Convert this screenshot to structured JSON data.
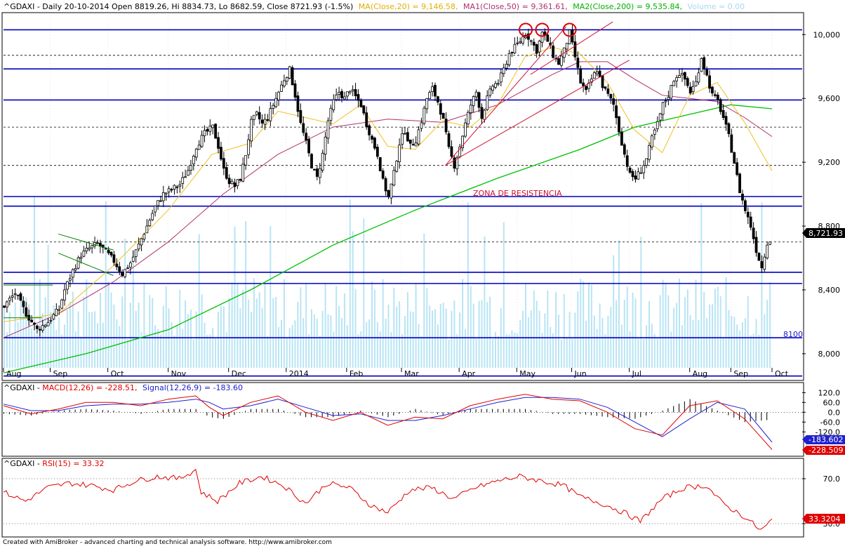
{
  "header": {
    "main_prefix": "^GDAXI - Daily 20-10-2014 Open 8819.26, Hi 8834.73, Lo 8682.59, Close 8721.93 (-1.5%)",
    "ma20": "MA(Close,20) = 9,146.58,",
    "ma50": "MA1(Close,50) = 9,361.61,",
    "ma200": "MA2(Close,200) = 9,535.84,",
    "volume": "Volume = 0.00",
    "macd_prefix": "^GDAXI - ",
    "macd_label": "MACD(12,26) = -228.51,",
    "signal_label": "Signal(12,26,9) = -183.60",
    "rsi_prefix": "^GDAXI - ",
    "rsi_label": "RSI(15) = 33.32"
  },
  "annotations": {
    "resistance_zone": "ZONA DE RESISTENCIA",
    "support_8100": "8100"
  },
  "footer": "Created with AmiBroker - advanced charting and technical analysis software. http://www.amibroker.com",
  "colors": {
    "price": "#000000",
    "ma20": "#f0c020",
    "ma50": "#b0306a",
    "ma200": "#00c000",
    "volume": "#b8e4f4",
    "macd": "#e00000",
    "signal": "#2020d0",
    "rsi": "#e00000",
    "levels": "#0000c0",
    "trend": "#d01030",
    "channel": "#008000",
    "tops": "#e00000"
  },
  "chart_data": [
    {
      "type": "candlestick",
      "symbol": "^GDAXI",
      "period": "Daily",
      "x_ticks": [
        "Aug",
        "Sep",
        "Oct",
        "Nov",
        "Dec",
        "2014",
        "Feb",
        "Mar",
        "Apr",
        "May",
        "Jun",
        "Jul",
        "Aug",
        "Sep",
        "Oct"
      ],
      "y_ticks": [
        "10,000",
        "9,600",
        "9,200",
        "8,800",
        "8,400",
        "8,000"
      ],
      "ylim": [
        7850,
        10120
      ],
      "last_close": "8,721.93",
      "ohlc_last": {
        "open": 8819.26,
        "high": 8834.73,
        "low": 8682.59,
        "close": 8721.93
      },
      "close_path": [
        [
          0,
          8300
        ],
        [
          4,
          8380
        ],
        [
          8,
          8250
        ],
        [
          12,
          8150
        ],
        [
          16,
          8200
        ],
        [
          20,
          8280
        ],
        [
          22,
          8400
        ],
        [
          25,
          8520
        ],
        [
          28,
          8620
        ],
        [
          31,
          8660
        ],
        [
          34,
          8690
        ],
        [
          37,
          8640
        ],
        [
          40,
          8580
        ],
        [
          43,
          8500
        ],
        [
          46,
          8570
        ],
        [
          49,
          8680
        ],
        [
          52,
          8800
        ],
        [
          55,
          8920
        ],
        [
          58,
          9000
        ],
        [
          61,
          9030
        ],
        [
          64,
          9060
        ],
        [
          67,
          9150
        ],
        [
          70,
          9300
        ],
        [
          73,
          9380
        ],
        [
          76,
          9420
        ],
        [
          78,
          9300
        ],
        [
          80,
          9150
        ],
        [
          82,
          9080
        ],
        [
          84,
          9050
        ],
        [
          86,
          9100
        ],
        [
          88,
          9250
        ],
        [
          90,
          9450
        ],
        [
          92,
          9500
        ],
        [
          94,
          9440
        ],
        [
          96,
          9480
        ],
        [
          98,
          9560
        ],
        [
          100,
          9640
        ],
        [
          102,
          9720
        ],
        [
          104,
          9780
        ],
        [
          106,
          9620
        ],
        [
          108,
          9440
        ],
        [
          110,
          9320
        ],
        [
          112,
          9180
        ],
        [
          114,
          9100
        ],
        [
          116,
          9250
        ],
        [
          118,
          9460
        ],
        [
          120,
          9580
        ],
        [
          122,
          9640
        ],
        [
          124,
          9600
        ],
        [
          126,
          9660
        ],
        [
          128,
          9610
        ],
        [
          130,
          9560
        ],
        [
          132,
          9440
        ],
        [
          134,
          9340
        ],
        [
          136,
          9250
        ],
        [
          138,
          9080
        ],
        [
          140,
          8980
        ],
        [
          142,
          9130
        ],
        [
          144,
          9320
        ],
        [
          146,
          9400
        ],
        [
          148,
          9300
        ],
        [
          150,
          9340
        ],
        [
          152,
          9460
        ],
        [
          154,
          9600
        ],
        [
          156,
          9660
        ],
        [
          158,
          9580
        ],
        [
          160,
          9460
        ],
        [
          162,
          9280
        ],
        [
          164,
          9180
        ],
        [
          166,
          9300
        ],
        [
          168,
          9440
        ],
        [
          170,
          9560
        ],
        [
          172,
          9640
        ],
        [
          174,
          9480
        ],
        [
          176,
          9600
        ],
        [
          178,
          9680
        ],
        [
          180,
          9700
        ],
        [
          182,
          9780
        ],
        [
          184,
          9880
        ],
        [
          186,
          9920
        ],
        [
          188,
          9960
        ],
        [
          190,
          10010
        ],
        [
          192,
          9960
        ],
        [
          194,
          9900
        ],
        [
          196,
          10010
        ],
        [
          198,
          9960
        ],
        [
          200,
          9870
        ],
        [
          202,
          9820
        ],
        [
          204,
          9900
        ],
        [
          206,
          10010
        ],
        [
          208,
          9860
        ],
        [
          210,
          9700
        ],
        [
          212,
          9640
        ],
        [
          214,
          9720
        ],
        [
          216,
          9780
        ],
        [
          218,
          9680
        ],
        [
          220,
          9620
        ],
        [
          222,
          9560
        ],
        [
          224,
          9400
        ],
        [
          226,
          9250
        ],
        [
          228,
          9120
        ],
        [
          230,
          9100
        ],
        [
          232,
          9150
        ],
        [
          234,
          9220
        ],
        [
          236,
          9350
        ],
        [
          238,
          9440
        ],
        [
          240,
          9560
        ],
        [
          242,
          9620
        ],
        [
          244,
          9720
        ],
        [
          246,
          9760
        ],
        [
          248,
          9720
        ],
        [
          250,
          9640
        ],
        [
          252,
          9700
        ],
        [
          254,
          9860
        ],
        [
          256,
          9740
        ],
        [
          258,
          9620
        ],
        [
          260,
          9580
        ],
        [
          262,
          9480
        ],
        [
          264,
          9360
        ],
        [
          266,
          9200
        ],
        [
          268,
          9020
        ],
        [
          270,
          8900
        ],
        [
          272,
          8800
        ],
        [
          274,
          8650
        ],
        [
          276,
          8540
        ],
        [
          278,
          8700
        ],
        [
          280,
          8720
        ]
      ],
      "ma20_path": [
        [
          0,
          8200
        ],
        [
          20,
          8250
        ],
        [
          40,
          8550
        ],
        [
          60,
          8900
        ],
        [
          76,
          9250
        ],
        [
          90,
          9320
        ],
        [
          100,
          9520
        ],
        [
          110,
          9480
        ],
        [
          120,
          9440
        ],
        [
          130,
          9560
        ],
        [
          140,
          9300
        ],
        [
          150,
          9280
        ],
        [
          160,
          9460
        ],
        [
          170,
          9420
        ],
        [
          180,
          9560
        ],
        [
          190,
          9860
        ],
        [
          200,
          9920
        ],
        [
          210,
          9880
        ],
        [
          220,
          9700
        ],
        [
          230,
          9400
        ],
        [
          240,
          9260
        ],
        [
          250,
          9620
        ],
        [
          260,
          9700
        ],
        [
          270,
          9450
        ],
        [
          280,
          9146
        ]
      ],
      "ma50_path": [
        [
          0,
          8100
        ],
        [
          20,
          8250
        ],
        [
          40,
          8450
        ],
        [
          60,
          8700
        ],
        [
          80,
          9000
        ],
        [
          100,
          9250
        ],
        [
          120,
          9420
        ],
        [
          140,
          9470
        ],
        [
          160,
          9450
        ],
        [
          180,
          9560
        ],
        [
          200,
          9750
        ],
        [
          210,
          9830
        ],
        [
          220,
          9830
        ],
        [
          230,
          9720
        ],
        [
          240,
          9620
        ],
        [
          250,
          9600
        ],
        [
          260,
          9580
        ],
        [
          270,
          9480
        ],
        [
          280,
          9361
        ]
      ],
      "ma200_path": [
        [
          0,
          7880
        ],
        [
          30,
          8000
        ],
        [
          60,
          8150
        ],
        [
          90,
          8400
        ],
        [
          120,
          8680
        ],
        [
          150,
          8900
        ],
        [
          180,
          9100
        ],
        [
          210,
          9280
        ],
        [
          230,
          9420
        ],
        [
          250,
          9500
        ],
        [
          265,
          9560
        ],
        [
          280,
          9535
        ]
      ],
      "horizontal_levels": [
        10030,
        9785,
        9590,
        8985,
        8925,
        8510,
        8440,
        8100,
        7860
      ],
      "dashed_levels": [
        9870,
        9420,
        9180,
        8700
      ],
      "trendlines": [
        {
          "from": [
            161,
            9180
          ],
          "to": [
            205,
            10050
          ],
          "color": "trend"
        },
        {
          "from": [
            161,
            9180
          ],
          "to": [
            228,
            9840
          ],
          "color": "trend"
        },
        {
          "from": [
            192,
            9750
          ],
          "to": [
            222,
            10080
          ],
          "color": "trend"
        }
      ],
      "channel": [
        {
          "from": [
            20,
            8750
          ],
          "to": [
            40,
            8650
          ]
        },
        {
          "from": [
            20,
            8630
          ],
          "to": [
            40,
            8490
          ]
        }
      ],
      "volume_note": "light blue histogram behind price"
    },
    {
      "type": "line",
      "indicator": "MACD(12,26), Signal(12,26,9)",
      "y_ticks": [
        "120.0",
        "60.0",
        "0.0",
        "-60.0",
        "-120.0"
      ],
      "ylim": [
        -260,
        160
      ],
      "macd_last": "-228.509",
      "signal_last": "-183.602",
      "macd_path": [
        [
          0,
          40
        ],
        [
          10,
          -10
        ],
        [
          20,
          20
        ],
        [
          30,
          60
        ],
        [
          40,
          60
        ],
        [
          50,
          40
        ],
        [
          60,
          80
        ],
        [
          70,
          100
        ],
        [
          75,
          30
        ],
        [
          80,
          -20
        ],
        [
          90,
          60
        ],
        [
          100,
          100
        ],
        [
          110,
          0
        ],
        [
          120,
          -50
        ],
        [
          130,
          0
        ],
        [
          140,
          -80
        ],
        [
          150,
          -30
        ],
        [
          160,
          -40
        ],
        [
          170,
          40
        ],
        [
          180,
          80
        ],
        [
          190,
          110
        ],
        [
          200,
          80
        ],
        [
          210,
          70
        ],
        [
          220,
          0
        ],
        [
          230,
          -100
        ],
        [
          240,
          -140
        ],
        [
          250,
          40
        ],
        [
          260,
          70
        ],
        [
          270,
          -40
        ],
        [
          280,
          -228
        ]
      ],
      "signal_path": [
        [
          0,
          50
        ],
        [
          10,
          10
        ],
        [
          20,
          10
        ],
        [
          30,
          40
        ],
        [
          40,
          50
        ],
        [
          50,
          50
        ],
        [
          60,
          60
        ],
        [
          70,
          80
        ],
        [
          75,
          60
        ],
        [
          80,
          20
        ],
        [
          90,
          40
        ],
        [
          100,
          80
        ],
        [
          110,
          30
        ],
        [
          120,
          -20
        ],
        [
          130,
          -10
        ],
        [
          140,
          -50
        ],
        [
          150,
          -50
        ],
        [
          160,
          -20
        ],
        [
          170,
          20
        ],
        [
          180,
          60
        ],
        [
          190,
          90
        ],
        [
          200,
          90
        ],
        [
          210,
          80
        ],
        [
          220,
          30
        ],
        [
          230,
          -60
        ],
        [
          240,
          -150
        ],
        [
          250,
          -40
        ],
        [
          260,
          60
        ],
        [
          270,
          20
        ],
        [
          280,
          -183
        ]
      ]
    },
    {
      "type": "line",
      "indicator": "RSI(15)",
      "y_ticks": [
        "70.0",
        "30.0"
      ],
      "ylim": [
        20,
        85
      ],
      "rsi_last": "33.3204",
      "rsi_path": [
        [
          0,
          58
        ],
        [
          8,
          50
        ],
        [
          16,
          62
        ],
        [
          24,
          66
        ],
        [
          32,
          64
        ],
        [
          40,
          60
        ],
        [
          48,
          68
        ],
        [
          56,
          72
        ],
        [
          64,
          70
        ],
        [
          70,
          78
        ],
        [
          72,
          58
        ],
        [
          78,
          50
        ],
        [
          86,
          66
        ],
        [
          94,
          72
        ],
        [
          102,
          64
        ],
        [
          110,
          48
        ],
        [
          118,
          66
        ],
        [
          126,
          62
        ],
        [
          134,
          46
        ],
        [
          140,
          40
        ],
        [
          148,
          60
        ],
        [
          156,
          62
        ],
        [
          164,
          52
        ],
        [
          172,
          62
        ],
        [
          180,
          68
        ],
        [
          188,
          72
        ],
        [
          196,
          68
        ],
        [
          204,
          64
        ],
        [
          210,
          54
        ],
        [
          218,
          48
        ],
        [
          226,
          40
        ],
        [
          232,
          32
        ],
        [
          240,
          52
        ],
        [
          248,
          62
        ],
        [
          256,
          64
        ],
        [
          262,
          48
        ],
        [
          270,
          36
        ],
        [
          276,
          24
        ],
        [
          280,
          33
        ]
      ]
    }
  ]
}
